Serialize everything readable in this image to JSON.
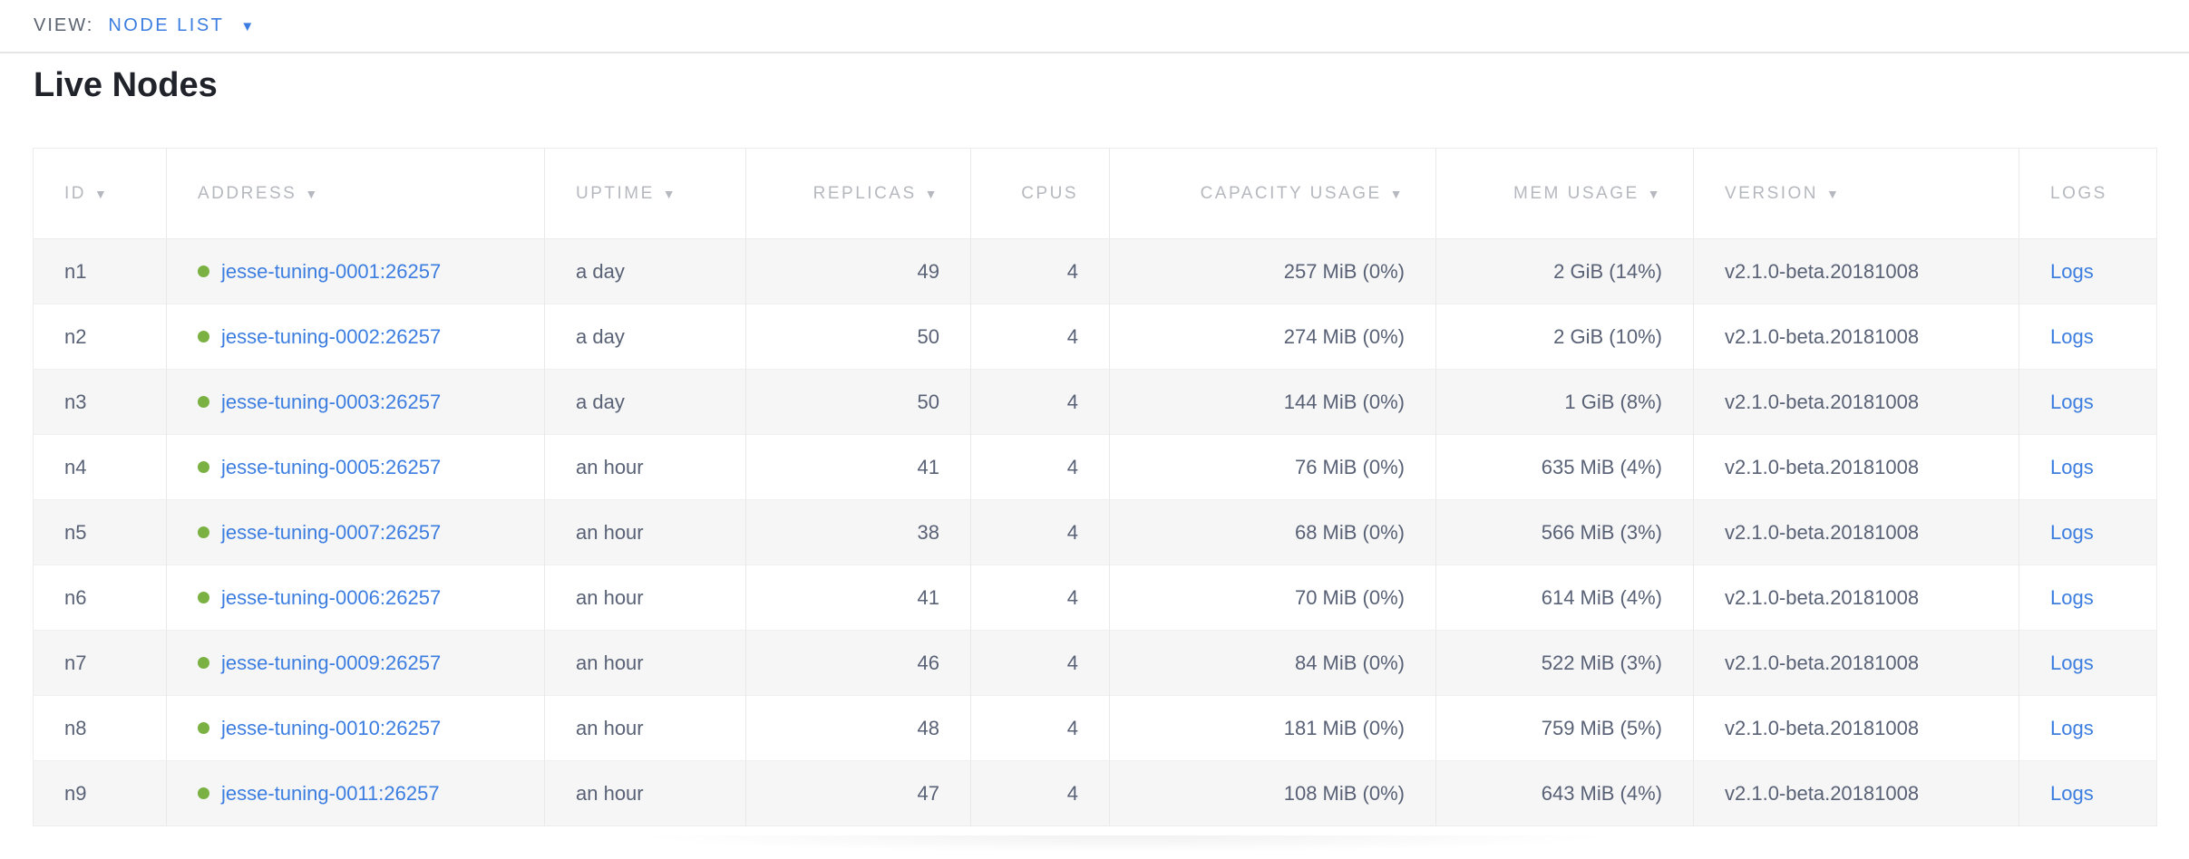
{
  "toolbar": {
    "view_label": "VIEW:",
    "selected_view": "NODE LIST"
  },
  "page": {
    "heading": "Live Nodes"
  },
  "icons": {
    "sort_arrow": "▼",
    "dropdown_caret": "▼"
  },
  "colors": {
    "link_blue": "#3b7de0",
    "healthy_green": "#7ab142",
    "header_text": "#b5b8be",
    "body_text": "#586175",
    "row_alt_bg": "#f6f6f6"
  },
  "table": {
    "columns": [
      {
        "key": "id",
        "label": "ID",
        "sortable": true,
        "align": "left"
      },
      {
        "key": "address",
        "label": "ADDRESS",
        "sortable": true,
        "align": "left"
      },
      {
        "key": "uptime",
        "label": "UPTIME",
        "sortable": true,
        "align": "left"
      },
      {
        "key": "replicas",
        "label": "REPLICAS",
        "sortable": true,
        "align": "right"
      },
      {
        "key": "cpus",
        "label": "CPUS",
        "sortable": false,
        "align": "right"
      },
      {
        "key": "capacity",
        "label": "CAPACITY USAGE",
        "sortable": true,
        "align": "right"
      },
      {
        "key": "mem",
        "label": "MEM USAGE",
        "sortable": true,
        "align": "right"
      },
      {
        "key": "version",
        "label": "VERSION",
        "sortable": true,
        "align": "left"
      },
      {
        "key": "logs",
        "label": "LOGS",
        "sortable": false,
        "align": "left"
      }
    ],
    "rows": [
      {
        "id": "n1",
        "address": "jesse-tuning-0001:26257",
        "status": "healthy",
        "uptime": "a day",
        "replicas": "49",
        "cpus": "4",
        "capacity": "257 MiB (0%)",
        "mem": "2 GiB (14%)",
        "version": "v2.1.0-beta.20181008",
        "logs": "Logs"
      },
      {
        "id": "n2",
        "address": "jesse-tuning-0002:26257",
        "status": "healthy",
        "uptime": "a day",
        "replicas": "50",
        "cpus": "4",
        "capacity": "274 MiB (0%)",
        "mem": "2 GiB (10%)",
        "version": "v2.1.0-beta.20181008",
        "logs": "Logs"
      },
      {
        "id": "n3",
        "address": "jesse-tuning-0003:26257",
        "status": "healthy",
        "uptime": "a day",
        "replicas": "50",
        "cpus": "4",
        "capacity": "144 MiB (0%)",
        "mem": "1 GiB (8%)",
        "version": "v2.1.0-beta.20181008",
        "logs": "Logs"
      },
      {
        "id": "n4",
        "address": "jesse-tuning-0005:26257",
        "status": "healthy",
        "uptime": "an hour",
        "replicas": "41",
        "cpus": "4",
        "capacity": "76 MiB (0%)",
        "mem": "635 MiB (4%)",
        "version": "v2.1.0-beta.20181008",
        "logs": "Logs"
      },
      {
        "id": "n5",
        "address": "jesse-tuning-0007:26257",
        "status": "healthy",
        "uptime": "an hour",
        "replicas": "38",
        "cpus": "4",
        "capacity": "68 MiB (0%)",
        "mem": "566 MiB (3%)",
        "version": "v2.1.0-beta.20181008",
        "logs": "Logs"
      },
      {
        "id": "n6",
        "address": "jesse-tuning-0006:26257",
        "status": "healthy",
        "uptime": "an hour",
        "replicas": "41",
        "cpus": "4",
        "capacity": "70 MiB (0%)",
        "mem": "614 MiB (4%)",
        "version": "v2.1.0-beta.20181008",
        "logs": "Logs"
      },
      {
        "id": "n7",
        "address": "jesse-tuning-0009:26257",
        "status": "healthy",
        "uptime": "an hour",
        "replicas": "46",
        "cpus": "4",
        "capacity": "84 MiB (0%)",
        "mem": "522 MiB (3%)",
        "version": "v2.1.0-beta.20181008",
        "logs": "Logs"
      },
      {
        "id": "n8",
        "address": "jesse-tuning-0010:26257",
        "status": "healthy",
        "uptime": "an hour",
        "replicas": "48",
        "cpus": "4",
        "capacity": "181 MiB (0%)",
        "mem": "759 MiB (5%)",
        "version": "v2.1.0-beta.20181008",
        "logs": "Logs"
      },
      {
        "id": "n9",
        "address": "jesse-tuning-0011:26257",
        "status": "healthy",
        "uptime": "an hour",
        "replicas": "47",
        "cpus": "4",
        "capacity": "108 MiB (0%)",
        "mem": "643 MiB (4%)",
        "version": "v2.1.0-beta.20181008",
        "logs": "Logs"
      }
    ]
  }
}
